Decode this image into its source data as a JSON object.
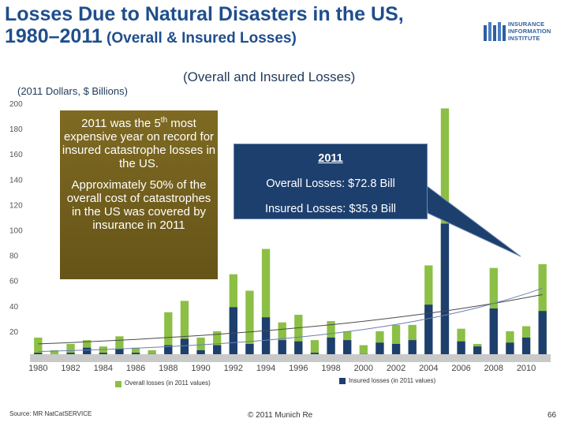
{
  "slide": {
    "title_line1": "Losses Due to Natural Disasters in the US,",
    "title_line2_main": "1980–2011",
    "title_line2_sub": " (Overall & Insured Losses)",
    "logo_lines": [
      "INSURANCE",
      "INFORMATION",
      "INSTITUTE"
    ],
    "source": "Source: MR NatCatSERVICE",
    "copyright": "© 2011 Munich Re",
    "page_number": "66"
  },
  "annotations": {
    "box1_pre": "2011 was the 5",
    "box1_sup": "th",
    "box1_post": " most expensive year on record for insured catastrophe losses in the US.",
    "box2": "Approximately 50% of the overall cost of catastrophes in the US was covered by insurance in 2011",
    "callout_year": "2011",
    "callout_overall": "Overall Losses: $72.8 Bill",
    "callout_insured": "Insured Losses: $35.9 Bill"
  },
  "colors": {
    "overall": "#8cbf45",
    "insured": "#1d3f6e",
    "title": "#1f4e8c",
    "gold_box": "#725f1d",
    "callout": "#1d3f6e"
  },
  "chart_data": {
    "type": "bar",
    "title": "(Overall and Insured Losses)",
    "ylabel": "(2011 Dollars, $ Billions)",
    "xlabel": "",
    "ylim": [
      0,
      200
    ],
    "yticks": [
      20,
      40,
      60,
      80,
      100,
      120,
      140,
      160,
      180,
      200
    ],
    "xtick_labels": [
      "1980",
      "1982",
      "1984",
      "1986",
      "1988",
      "1990",
      "1992",
      "1994",
      "1996",
      "1998",
      "2000",
      "2002",
      "2004",
      "2006",
      "2008",
      "2010"
    ],
    "categories": [
      "1980",
      "1981",
      "1982",
      "1983",
      "1984",
      "1985",
      "1986",
      "1987",
      "1988",
      "1989",
      "1990",
      "1991",
      "1992",
      "1993",
      "1994",
      "1995",
      "1996",
      "1997",
      "1998",
      "1999",
      "2000",
      "2001",
      "2002",
      "2003",
      "2004",
      "2005",
      "2006",
      "2007",
      "2008",
      "2009",
      "2010",
      "2011"
    ],
    "series": [
      {
        "name": "Overall losses (in 2011 values)",
        "values": [
          15,
          5,
          10,
          13,
          8,
          16,
          7,
          5,
          35,
          44,
          15,
          20,
          65,
          52,
          85,
          27,
          33,
          13,
          28,
          20,
          9,
          20,
          25,
          25,
          72,
          196,
          22,
          10,
          70,
          20,
          24,
          73
        ]
      },
      {
        "name": "Insured losses (in 2011 values)",
        "values": [
          3,
          1,
          3,
          7,
          3,
          6,
          3,
          2,
          9,
          14,
          5,
          9,
          39,
          10,
          31,
          13,
          12,
          3,
          15,
          13,
          2,
          11,
          10,
          13,
          41,
          105,
          12,
          8,
          38,
          11,
          15,
          36
        ]
      }
    ],
    "trend_lines": [
      {
        "series": "Overall losses (in 2011 values)",
        "values": [
          10,
          49
        ]
      },
      {
        "series": "Insured losses (in 2011 values)",
        "values": [
          4,
          54
        ]
      }
    ]
  }
}
